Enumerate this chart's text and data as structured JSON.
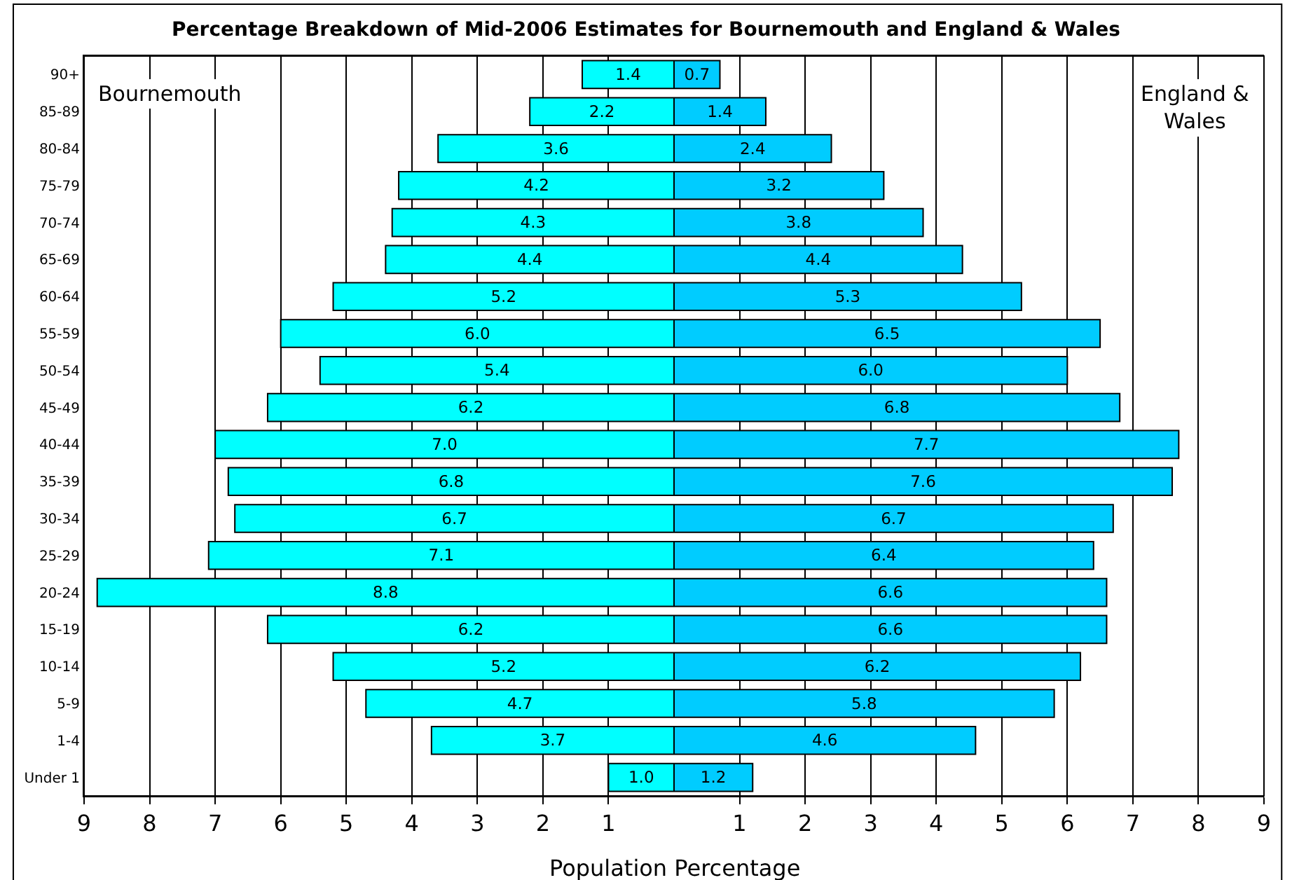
{
  "chart_data": [
    {
      "type": "bar",
      "orientation": "horizontal",
      "title": "Percentage Breakdown of Mid-2006 Estimates for Bournemouth and England & Wales",
      "xlabel": "Population Percentage",
      "categories": [
        "90+",
        "85-89",
        "80-84",
        "75-79",
        "70-74",
        "65-69",
        "60-64",
        "55-59",
        "50-54",
        "45-49",
        "40-44",
        "35-39",
        "30-34",
        "25-29",
        "20-24",
        "15-19",
        "10-14",
        "5-9",
        "1-4",
        "Under 1"
      ],
      "series": [
        {
          "name": "Bournemouth",
          "color": "#00ffff",
          "values": [
            1.4,
            2.2,
            3.6,
            4.2,
            4.3,
            4.4,
            5.2,
            6.0,
            5.4,
            6.2,
            7.0,
            6.8,
            6.7,
            7.1,
            8.8,
            6.2,
            5.2,
            4.7,
            3.7,
            1.0
          ],
          "value_labels": [
            "1.4",
            "2.2",
            "3.6",
            "4.2",
            "4.3",
            "4.4",
            "5.2",
            "6.0",
            "5.4",
            "6.2",
            "7.0",
            "6.8",
            "6.7",
            "7.1",
            "8.8",
            "6.2",
            "5.2",
            "4.7",
            "3.7",
            "1.0"
          ]
        }
      ],
      "xlim": [
        9,
        0
      ],
      "xticks": [
        9,
        8,
        7,
        6,
        5,
        4,
        3,
        2,
        1
      ],
      "grid": "x"
    },
    {
      "type": "bar",
      "orientation": "horizontal",
      "categories": [
        "90+",
        "85-89",
        "80-84",
        "75-79",
        "70-74",
        "65-69",
        "60-64",
        "55-59",
        "50-54",
        "45-49",
        "40-44",
        "35-39",
        "30-34",
        "25-29",
        "20-24",
        "15-19",
        "10-14",
        "5-9",
        "1-4",
        "Under 1"
      ],
      "series": [
        {
          "name": "England & Wales",
          "color": "#00ccff",
          "values": [
            0.7,
            1.4,
            2.4,
            3.2,
            3.8,
            4.4,
            5.3,
            6.5,
            6.0,
            6.8,
            7.7,
            7.6,
            6.7,
            6.4,
            6.6,
            6.6,
            6.2,
            5.8,
            4.6,
            1.2
          ],
          "value_labels": [
            "0.7",
            "1.4",
            "2.4",
            "3.2",
            "3.8",
            "4.4",
            "5.3",
            "6.5",
            "6.0",
            "6.8",
            "7.7",
            "7.6",
            "6.7",
            "6.4",
            "6.6",
            "6.6",
            "6.2",
            "5.8",
            "4.6",
            "1.2"
          ]
        }
      ],
      "xlim": [
        0,
        9
      ],
      "xticks": [
        1,
        2,
        3,
        4,
        5,
        6,
        7,
        8,
        9
      ],
      "grid": "x",
      "tick_labels": "x"
    }
  ]
}
